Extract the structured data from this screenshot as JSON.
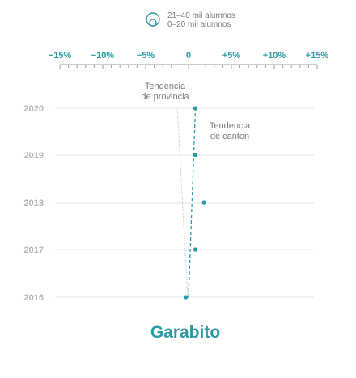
{
  "chart_data": {
    "type": "scatter",
    "title": "Garabito",
    "x_axis": {
      "range": [
        -15,
        15
      ],
      "ticks": [
        -15,
        -10,
        -5,
        0,
        5,
        10,
        15
      ],
      "tick_labels": [
        "−15%",
        "−10%",
        "−5%",
        "0",
        "+5%",
        "+10%",
        "+15%"
      ],
      "minor_step": 1
    },
    "years": [
      "2020",
      "2019",
      "2018",
      "2017",
      "2016"
    ],
    "legend": {
      "items": [
        {
          "label": "21–40 mil alumnos"
        },
        {
          "label": "0–20 mil alumnos"
        }
      ]
    },
    "series": [
      {
        "points": [
          {
            "year": "2020",
            "x": 0.8
          },
          {
            "year": "2019",
            "x": 0.8
          },
          {
            "year": "2018",
            "x": 1.8
          },
          {
            "year": "2017",
            "x": 0.8
          },
          {
            "year": "2016",
            "x": -0.3
          }
        ]
      }
    ],
    "trend_lines": [
      {
        "label_lines": [
          "Tendencia",
          "de canton"
        ],
        "from": {
          "year": "2016",
          "x": 0.0
        },
        "to": {
          "year": "2020",
          "x": 0.8
        }
      },
      {
        "label_lines": [
          "Tendencia",
          "de provincia"
        ],
        "from": {
          "year": "2016",
          "x": -0.1
        },
        "to": {
          "year": "2020",
          "x": -1.3
        }
      }
    ],
    "grid": true,
    "colors": {
      "accent": "#2a9ba5",
      "muted": "#b3b3b3",
      "grid": "#e6e6e6"
    }
  }
}
